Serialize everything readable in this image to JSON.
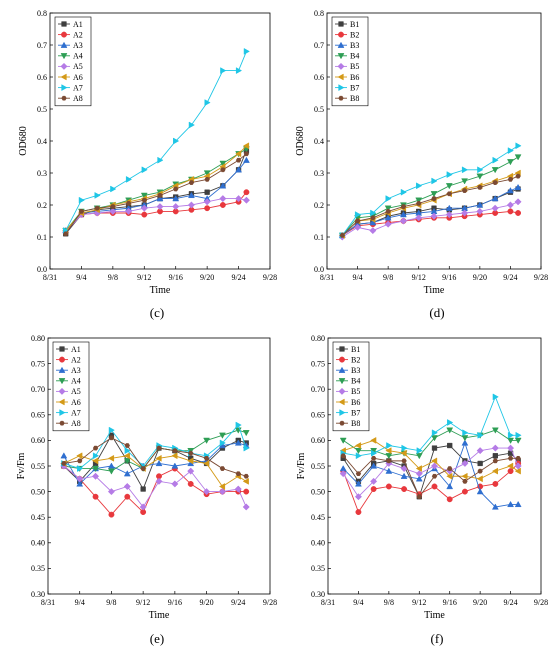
{
  "series_colors": {
    "s1": "#3f3f3f",
    "s2": "#e8383d",
    "s3": "#2f6fd0",
    "s4": "#2e9e55",
    "s5": "#b57be6",
    "s6": "#d49a18",
    "s7": "#1fc6e6",
    "s8": "#7b4a33"
  },
  "series_markers": [
    "square",
    "circle",
    "triangle-up",
    "triangle-down",
    "diamond",
    "triangle-left",
    "triangle-right",
    "hexagon"
  ],
  "x_dates": [
    "9/2",
    "9/4",
    "9/6",
    "9/8",
    "9/10",
    "9/12",
    "9/14",
    "9/16",
    "9/18",
    "9/20",
    "9/22",
    "9/24",
    "9/25"
  ],
  "chart_data": [
    {
      "panel": "(c)",
      "type": "line",
      "xlabel": "Time",
      "ylabel": "OD680",
      "xticks": [
        "8/31",
        "9/4",
        "9/8",
        "9/12",
        "9/16",
        "9/20",
        "9/24",
        "9/28"
      ],
      "xlim": [
        "8/31",
        "9/28"
      ],
      "ylim": [
        0,
        0.8
      ],
      "yticks": [
        "0.0",
        "0.1",
        "0.2",
        "0.3",
        "0.4",
        "0.5",
        "0.6",
        "0.7",
        "0.8"
      ],
      "legend": "top-left",
      "series": [
        {
          "name": "A1",
          "values": [
            0.11,
            0.17,
            0.185,
            0.19,
            0.195,
            0.2,
            0.22,
            0.225,
            0.235,
            0.24,
            0.26,
            0.31,
            0.37
          ]
        },
        {
          "name": "A2",
          "values": [
            0.12,
            0.17,
            0.175,
            0.175,
            0.175,
            0.17,
            0.18,
            0.18,
            0.185,
            0.19,
            0.2,
            0.21,
            0.24
          ]
        },
        {
          "name": "A3",
          "values": [
            0.12,
            0.175,
            0.18,
            0.185,
            0.19,
            0.2,
            0.22,
            0.22,
            0.23,
            0.22,
            0.26,
            0.31,
            0.34
          ]
        },
        {
          "name": "A4",
          "values": [
            0.12,
            0.18,
            0.19,
            0.2,
            0.215,
            0.23,
            0.24,
            0.265,
            0.28,
            0.3,
            0.33,
            0.36,
            0.375
          ]
        },
        {
          "name": "A5",
          "values": [
            0.115,
            0.17,
            0.175,
            0.18,
            0.18,
            0.19,
            0.195,
            0.195,
            0.2,
            0.21,
            0.22,
            0.22,
            0.215
          ]
        },
        {
          "name": "A6",
          "values": [
            0.12,
            0.175,
            0.185,
            0.2,
            0.21,
            0.22,
            0.235,
            0.26,
            0.28,
            0.29,
            0.32,
            0.36,
            0.385
          ]
        },
        {
          "name": "A7",
          "values": [
            0.12,
            0.215,
            0.23,
            0.25,
            0.28,
            0.31,
            0.34,
            0.4,
            0.45,
            0.52,
            0.62,
            0.62,
            0.68
          ]
        },
        {
          "name": "A8",
          "values": [
            0.11,
            0.18,
            0.19,
            0.195,
            0.205,
            0.215,
            0.23,
            0.25,
            0.27,
            0.28,
            0.31,
            0.34,
            0.36
          ]
        }
      ]
    },
    {
      "panel": "(d)",
      "type": "line",
      "xlabel": "Time",
      "ylabel": "OD680",
      "xticks": [
        "8/31",
        "9/4",
        "9/8",
        "9/12",
        "9/16",
        "9/20",
        "9/24",
        "9/28"
      ],
      "xlim": [
        "8/31",
        "9/28"
      ],
      "ylim": [
        0,
        0.8
      ],
      "yticks": [
        "0.0",
        "0.1",
        "0.2",
        "0.3",
        "0.4",
        "0.5",
        "0.6",
        "0.7",
        "0.8"
      ],
      "legend": "top-left",
      "series": [
        {
          "name": "B1",
          "values": [
            0.105,
            0.14,
            0.145,
            0.165,
            0.175,
            0.18,
            0.19,
            0.185,
            0.19,
            0.2,
            0.22,
            0.24,
            0.25
          ]
        },
        {
          "name": "B2",
          "values": [
            0.105,
            0.135,
            0.14,
            0.145,
            0.15,
            0.155,
            0.16,
            0.16,
            0.165,
            0.17,
            0.175,
            0.18,
            0.175
          ]
        },
        {
          "name": "B3",
          "values": [
            0.105,
            0.14,
            0.145,
            0.16,
            0.17,
            0.175,
            0.18,
            0.19,
            0.19,
            0.2,
            0.22,
            0.245,
            0.255
          ]
        },
        {
          "name": "B4",
          "values": [
            0.105,
            0.16,
            0.165,
            0.19,
            0.2,
            0.215,
            0.235,
            0.26,
            0.275,
            0.29,
            0.31,
            0.335,
            0.35
          ]
        },
        {
          "name": "B5",
          "values": [
            0.1,
            0.13,
            0.12,
            0.14,
            0.15,
            0.16,
            0.165,
            0.17,
            0.175,
            0.18,
            0.19,
            0.2,
            0.21
          ]
        },
        {
          "name": "B6",
          "values": [
            0.105,
            0.15,
            0.155,
            0.175,
            0.19,
            0.2,
            0.215,
            0.235,
            0.25,
            0.26,
            0.275,
            0.29,
            0.3
          ]
        },
        {
          "name": "B7",
          "values": [
            0.105,
            0.17,
            0.175,
            0.22,
            0.24,
            0.26,
            0.275,
            0.295,
            0.31,
            0.31,
            0.34,
            0.37,
            0.385
          ]
        },
        {
          "name": "B8",
          "values": [
            0.105,
            0.15,
            0.16,
            0.18,
            0.195,
            0.205,
            0.22,
            0.235,
            0.245,
            0.255,
            0.27,
            0.28,
            0.29
          ]
        }
      ]
    },
    {
      "panel": "(e)",
      "type": "line",
      "xlabel": "Time",
      "ylabel": "Fv/Fm",
      "xticks": [
        "8/31",
        "9/4",
        "9/8",
        "9/12",
        "9/16",
        "9/20",
        "9/24",
        "9/28"
      ],
      "xlim": [
        "8/31",
        "9/28"
      ],
      "ylim": [
        0.3,
        0.8
      ],
      "yticks": [
        "0.30",
        "0.35",
        "0.40",
        "0.45",
        "0.50",
        "0.55",
        "0.60",
        "0.65",
        "0.70",
        "0.75",
        "0.80"
      ],
      "legend": "top-left",
      "series": [
        {
          "name": "A1",
          "values": [
            0.55,
            0.52,
            0.555,
            0.61,
            0.56,
            0.505,
            0.585,
            0.58,
            0.565,
            0.555,
            0.585,
            0.6,
            0.595
          ]
        },
        {
          "name": "A2",
          "values": [
            0.55,
            0.525,
            0.49,
            0.455,
            0.49,
            0.46,
            0.53,
            0.545,
            0.515,
            0.495,
            0.5,
            0.5,
            0.5
          ]
        },
        {
          "name": "A3",
          "values": [
            0.57,
            0.515,
            0.545,
            0.55,
            0.535,
            0.55,
            0.555,
            0.55,
            0.555,
            0.56,
            0.59,
            0.595,
            0.59
          ]
        },
        {
          "name": "A4",
          "values": [
            0.55,
            0.545,
            0.545,
            0.54,
            0.56,
            0.545,
            0.585,
            0.58,
            0.58,
            0.6,
            0.61,
            0.62,
            0.615
          ]
        },
        {
          "name": "A5",
          "values": [
            0.55,
            0.525,
            0.53,
            0.5,
            0.51,
            0.47,
            0.52,
            0.515,
            0.54,
            0.5,
            0.5,
            0.505,
            0.47
          ]
        },
        {
          "name": "A6",
          "values": [
            0.555,
            0.57,
            0.56,
            0.565,
            0.57,
            0.545,
            0.565,
            0.57,
            0.56,
            0.555,
            0.51,
            0.53,
            0.52
          ]
        },
        {
          "name": "A7",
          "values": [
            0.555,
            0.545,
            0.57,
            0.62,
            0.58,
            0.55,
            0.59,
            0.585,
            0.575,
            0.57,
            0.595,
            0.63,
            0.585
          ]
        },
        {
          "name": "A8",
          "values": [
            0.555,
            0.56,
            0.585,
            0.605,
            0.59,
            0.545,
            0.585,
            0.58,
            0.575,
            0.565,
            0.545,
            0.535,
            0.53
          ]
        }
      ]
    },
    {
      "panel": "(f)",
      "type": "line",
      "xlabel": "Time",
      "ylabel": "Fv/Fm",
      "xticks": [
        "8/31",
        "9/4",
        "9/8",
        "9/12",
        "9/16",
        "9/20",
        "9/24",
        "9/28"
      ],
      "xlim": [
        "8/31",
        "9/28"
      ],
      "ylim": [
        0.3,
        0.8
      ],
      "yticks": [
        "0.30",
        "0.35",
        "0.40",
        "0.45",
        "0.50",
        "0.55",
        "0.60",
        "0.65",
        "0.70",
        "0.75",
        "0.80"
      ],
      "legend": "top-left",
      "series": [
        {
          "name": "B1",
          "values": [
            0.565,
            0.52,
            0.555,
            0.56,
            0.55,
            0.49,
            0.585,
            0.59,
            0.56,
            0.555,
            0.57,
            0.575,
            0.56
          ]
        },
        {
          "name": "B2",
          "values": [
            0.54,
            0.46,
            0.505,
            0.51,
            0.505,
            0.495,
            0.51,
            0.485,
            0.5,
            0.51,
            0.515,
            0.54,
            0.555
          ]
        },
        {
          "name": "B3",
          "values": [
            0.545,
            0.515,
            0.55,
            0.54,
            0.53,
            0.525,
            0.545,
            0.51,
            0.595,
            0.5,
            0.47,
            0.475,
            0.475
          ]
        },
        {
          "name": "B4",
          "values": [
            0.6,
            0.58,
            0.58,
            0.57,
            0.575,
            0.57,
            0.605,
            0.62,
            0.605,
            0.61,
            0.62,
            0.6,
            0.6
          ]
        },
        {
          "name": "B5",
          "values": [
            0.535,
            0.49,
            0.52,
            0.555,
            0.545,
            0.535,
            0.55,
            0.54,
            0.555,
            0.58,
            0.585,
            0.585,
            0.55
          ]
        },
        {
          "name": "B6",
          "values": [
            0.58,
            0.59,
            0.6,
            0.58,
            0.575,
            0.545,
            0.56,
            0.53,
            0.53,
            0.525,
            0.54,
            0.55,
            0.54
          ]
        },
        {
          "name": "B7",
          "values": [
            0.575,
            0.57,
            0.575,
            0.59,
            0.585,
            0.58,
            0.615,
            0.635,
            0.615,
            0.61,
            0.685,
            0.61,
            0.61
          ]
        },
        {
          "name": "B8",
          "values": [
            0.57,
            0.535,
            0.565,
            0.56,
            0.56,
            0.49,
            0.53,
            0.545,
            0.52,
            0.54,
            0.56,
            0.565,
            0.565
          ]
        }
      ]
    }
  ]
}
